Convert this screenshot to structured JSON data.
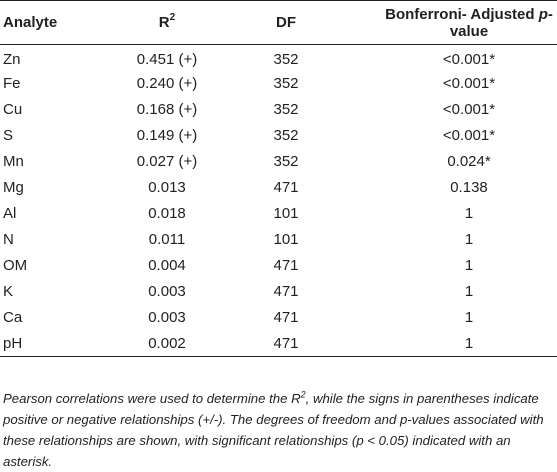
{
  "table": {
    "headers": {
      "analyte": "Analyte",
      "r2_base": "R",
      "r2_sup": "2",
      "df": "DF",
      "p_prefix": "Bonferroni- Adjusted ",
      "p_italic": "p",
      "p_suffix": "-value"
    },
    "rows": [
      {
        "analyte": "Zn",
        "r2": "0.451 (+)",
        "df": "352",
        "p": "<0.001*"
      },
      {
        "analyte": "Fe",
        "r2": "0.240 (+)",
        "df": "352",
        "p": "<0.001*"
      },
      {
        "analyte": "Cu",
        "r2": "0.168 (+)",
        "df": "352",
        "p": "<0.001*"
      },
      {
        "analyte": "S",
        "r2": "0.149 (+)",
        "df": "352",
        "p": "<0.001*"
      },
      {
        "analyte": "Mn",
        "r2": "0.027 (+)",
        "df": "352",
        "p": "0.024*"
      },
      {
        "analyte": "Mg",
        "r2": "0.013",
        "df": "471",
        "p": "0.138"
      },
      {
        "analyte": "Al",
        "r2": "0.018",
        "df": "101",
        "p": "1"
      },
      {
        "analyte": "N",
        "r2": "0.011",
        "df": "101",
        "p": "1"
      },
      {
        "analyte": "OM",
        "r2": "0.004",
        "df": "471",
        "p": "1"
      },
      {
        "analyte": "K",
        "r2": "0.003",
        "df": "471",
        "p": "1"
      },
      {
        "analyte": "Ca",
        "r2": "0.003",
        "df": "471",
        "p": "1"
      },
      {
        "analyte": "pH",
        "r2": "0.002",
        "df": "471",
        "p": "1"
      }
    ]
  },
  "footnote": {
    "part1": "Pearson correlations were used to determine the R",
    "part1_sup": "2",
    "part2": ", while the signs in parentheses indicate positive or negative relationships (+/-). The degrees of freedom and p-values associated with these relationships are shown, with significant relationships (p < 0.05) indicated with an asterisk."
  }
}
